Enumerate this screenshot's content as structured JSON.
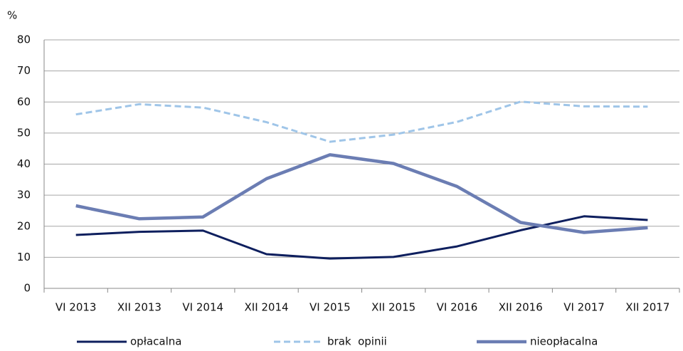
{
  "chart_data": {
    "type": "line",
    "y_label": "%",
    "categories": [
      "VI 2013",
      "XII 2013",
      "VI 2014",
      "XII 2014",
      "VI 2015",
      "XII 2015",
      "VI 2016",
      "XII 2016",
      "VI 2017",
      "XII 2017"
    ],
    "series": [
      {
        "name": "opłacalna",
        "color": "#0e1f5e",
        "width": 3,
        "dashed": false,
        "values": [
          17.2,
          18.2,
          18.6,
          11,
          9.6,
          10.1,
          13.5,
          18.7,
          23.2,
          22
        ]
      },
      {
        "name": "brak  opinii",
        "color": "#9fc5e8",
        "width": 3,
        "dashed": true,
        "values": [
          56,
          59.3,
          58.2,
          53.5,
          47.2,
          49.5,
          53.6,
          60.1,
          58.6,
          58.5
        ]
      },
      {
        "name": "nieopłacalna",
        "color": "#6b7db3",
        "width": 4.5,
        "dashed": false,
        "values": [
          26.6,
          22.4,
          23,
          35.3,
          43,
          40.2,
          32.8,
          21.2,
          18,
          19.5
        ]
      }
    ],
    "ylim": [
      0,
      80
    ],
    "yticks": [
      0,
      10,
      20,
      30,
      40,
      50,
      60,
      70,
      80
    ],
    "grid": true,
    "legend": "bottom"
  }
}
